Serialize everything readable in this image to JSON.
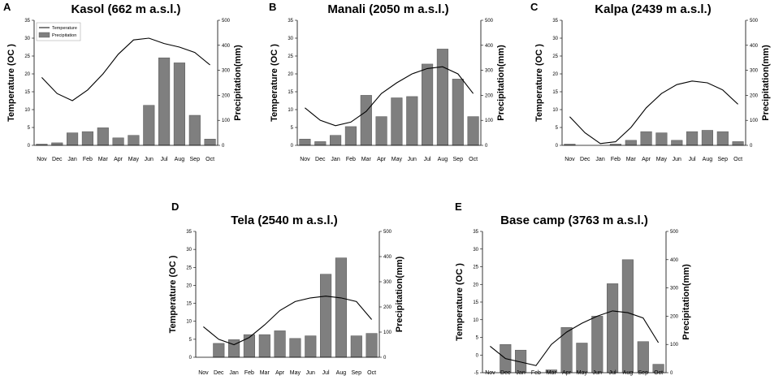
{
  "colors": {
    "bar": "#7f7f7f",
    "bar_edge": "#555555",
    "line": "#000000",
    "axis": "#000000"
  },
  "legend": {
    "temperature": "Temperature",
    "precipitation": "Precipitation"
  },
  "chart_data": [
    {
      "type": "bar+line",
      "panel": "A",
      "title": "Kasol (662 m a.s.l.)",
      "categories": [
        "Nov",
        "Dec",
        "Jan",
        "Feb",
        "Mar",
        "Apr",
        "May",
        "Jun",
        "Jul",
        "Aug",
        "Sep",
        "Oct"
      ],
      "ylabel": "Temperature (OC )",
      "y2label": "Precipitation(mm)",
      "ylim": [
        0,
        35
      ],
      "yticks": [
        0,
        5,
        10,
        15,
        20,
        25,
        30,
        35
      ],
      "y2lim": [
        0,
        500
      ],
      "y2ticks": [
        0,
        100,
        200,
        300,
        400,
        500
      ],
      "legend_position": "top-left",
      "series": [
        {
          "name": "Temperature",
          "kind": "line",
          "axis": "left",
          "values": [
            19,
            14.5,
            12.5,
            15.5,
            20,
            25.5,
            29.5,
            30,
            28.5,
            27.5,
            26,
            22.5
          ]
        },
        {
          "name": "Precipitation",
          "kind": "bar",
          "axis": "right",
          "values": [
            5,
            10,
            50,
            55,
            70,
            30,
            40,
            160,
            350,
            330,
            120,
            25
          ]
        }
      ]
    },
    {
      "type": "bar+line",
      "panel": "B",
      "title": "Manali (2050 m a.s.l.)",
      "categories": [
        "Nov",
        "Dec",
        "Jan",
        "Feb",
        "Mar",
        "Apr",
        "May",
        "Jun",
        "Jul",
        "Aug",
        "Sep",
        "Oct"
      ],
      "ylabel": "Temperature (OC )",
      "y2label": "Precipitation(mm)",
      "ylim": [
        0,
        35
      ],
      "yticks": [
        0,
        5,
        10,
        15,
        20,
        25,
        30,
        35
      ],
      "y2lim": [
        0,
        500
      ],
      "y2ticks": [
        0,
        100,
        200,
        300,
        400,
        500
      ],
      "series": [
        {
          "name": "Temperature",
          "kind": "line",
          "axis": "left",
          "values": [
            10.5,
            7,
            5.5,
            6.5,
            9.5,
            14.5,
            17.5,
            20,
            21.5,
            22,
            20,
            14.5
          ]
        },
        {
          "name": "Precipitation",
          "kind": "bar",
          "axis": "right",
          "values": [
            25,
            15,
            40,
            75,
            200,
            115,
            190,
            195,
            325,
            385,
            265,
            115
          ]
        }
      ]
    },
    {
      "type": "bar+line",
      "panel": "C",
      "title": "Kalpa (2439 m a.s.l.)",
      "categories": [
        "Nov",
        "Dec",
        "Jan",
        "Feb",
        "Mar",
        "Apr",
        "May",
        "Jun",
        "Jul",
        "Aug",
        "Sep",
        "Oct"
      ],
      "ylabel": "Temperature (OC )",
      "y2label": "Precipitation(mm)",
      "ylim": [
        0,
        35
      ],
      "yticks": [
        0,
        5,
        10,
        15,
        20,
        25,
        30,
        35
      ],
      "y2lim": [
        0,
        500
      ],
      "y2ticks": [
        0,
        100,
        200,
        300,
        400,
        500
      ],
      "series": [
        {
          "name": "Temperature",
          "kind": "line",
          "axis": "left",
          "values": [
            8,
            3.5,
            0.5,
            1,
            5,
            10.5,
            14.5,
            17,
            18,
            17.5,
            15.5,
            11.5
          ]
        },
        {
          "name": "Precipitation",
          "kind": "bar",
          "axis": "right",
          "values": [
            5,
            0,
            0,
            5,
            20,
            55,
            50,
            20,
            55,
            60,
            55,
            15
          ]
        }
      ]
    },
    {
      "type": "bar+line",
      "panel": "D",
      "title": "Tela (2540 m a.s.l.)",
      "categories": [
        "Nov",
        "Dec",
        "Jan",
        "Feb",
        "Mar",
        "Apr",
        "May",
        "Jun",
        "Jul",
        "Aug",
        "Sep",
        "Oct"
      ],
      "ylabel": "Temperature (OC )",
      "y2label": "Precipitation(mm)",
      "ylim": [
        0,
        35
      ],
      "yticks": [
        0,
        5,
        10,
        15,
        20,
        25,
        30,
        35
      ],
      "y2lim": [
        0,
        500
      ],
      "y2ticks": [
        0,
        100,
        200,
        300,
        400,
        500
      ],
      "series": [
        {
          "name": "Temperature",
          "kind": "line",
          "axis": "left",
          "values": [
            8.5,
            5,
            3.5,
            5.5,
            9,
            13,
            15.5,
            16.5,
            17,
            16.5,
            15.5,
            10.5
          ]
        },
        {
          "name": "Precipitation",
          "kind": "bar",
          "axis": "right",
          "values": [
            0,
            55,
            70,
            90,
            90,
            105,
            75,
            85,
            330,
            395,
            85,
            95
          ]
        }
      ]
    },
    {
      "type": "bar+line",
      "panel": "E",
      "title": "Base camp (3763 m a.s.l.)",
      "categories": [
        "Nov",
        "Dec",
        "Jan",
        "Feb",
        "Mar",
        "Apr",
        "May",
        "Jun",
        "Jul",
        "Aug",
        "Sep",
        "Oct"
      ],
      "ylabel": "Temperature (OC )",
      "y2label": "Precipitation(mm)",
      "ylim": [
        -5,
        35
      ],
      "yticks": [
        -5,
        0,
        5,
        10,
        15,
        20,
        25,
        30,
        35
      ],
      "y2lim": [
        0,
        500
      ],
      "y2ticks": [
        0,
        100,
        200,
        300,
        400,
        500
      ],
      "series": [
        {
          "name": "Temperature",
          "kind": "line",
          "axis": "left",
          "values": [
            2.5,
            -1,
            -2,
            -3,
            3,
            6.5,
            9,
            11,
            12.5,
            12,
            10.5,
            3.5
          ]
        },
        {
          "name": "Precipitation",
          "kind": "bar",
          "axis": "right",
          "values": [
            0,
            100,
            80,
            0,
            10,
            160,
            105,
            200,
            315,
            400,
            110,
            30
          ]
        }
      ]
    }
  ]
}
